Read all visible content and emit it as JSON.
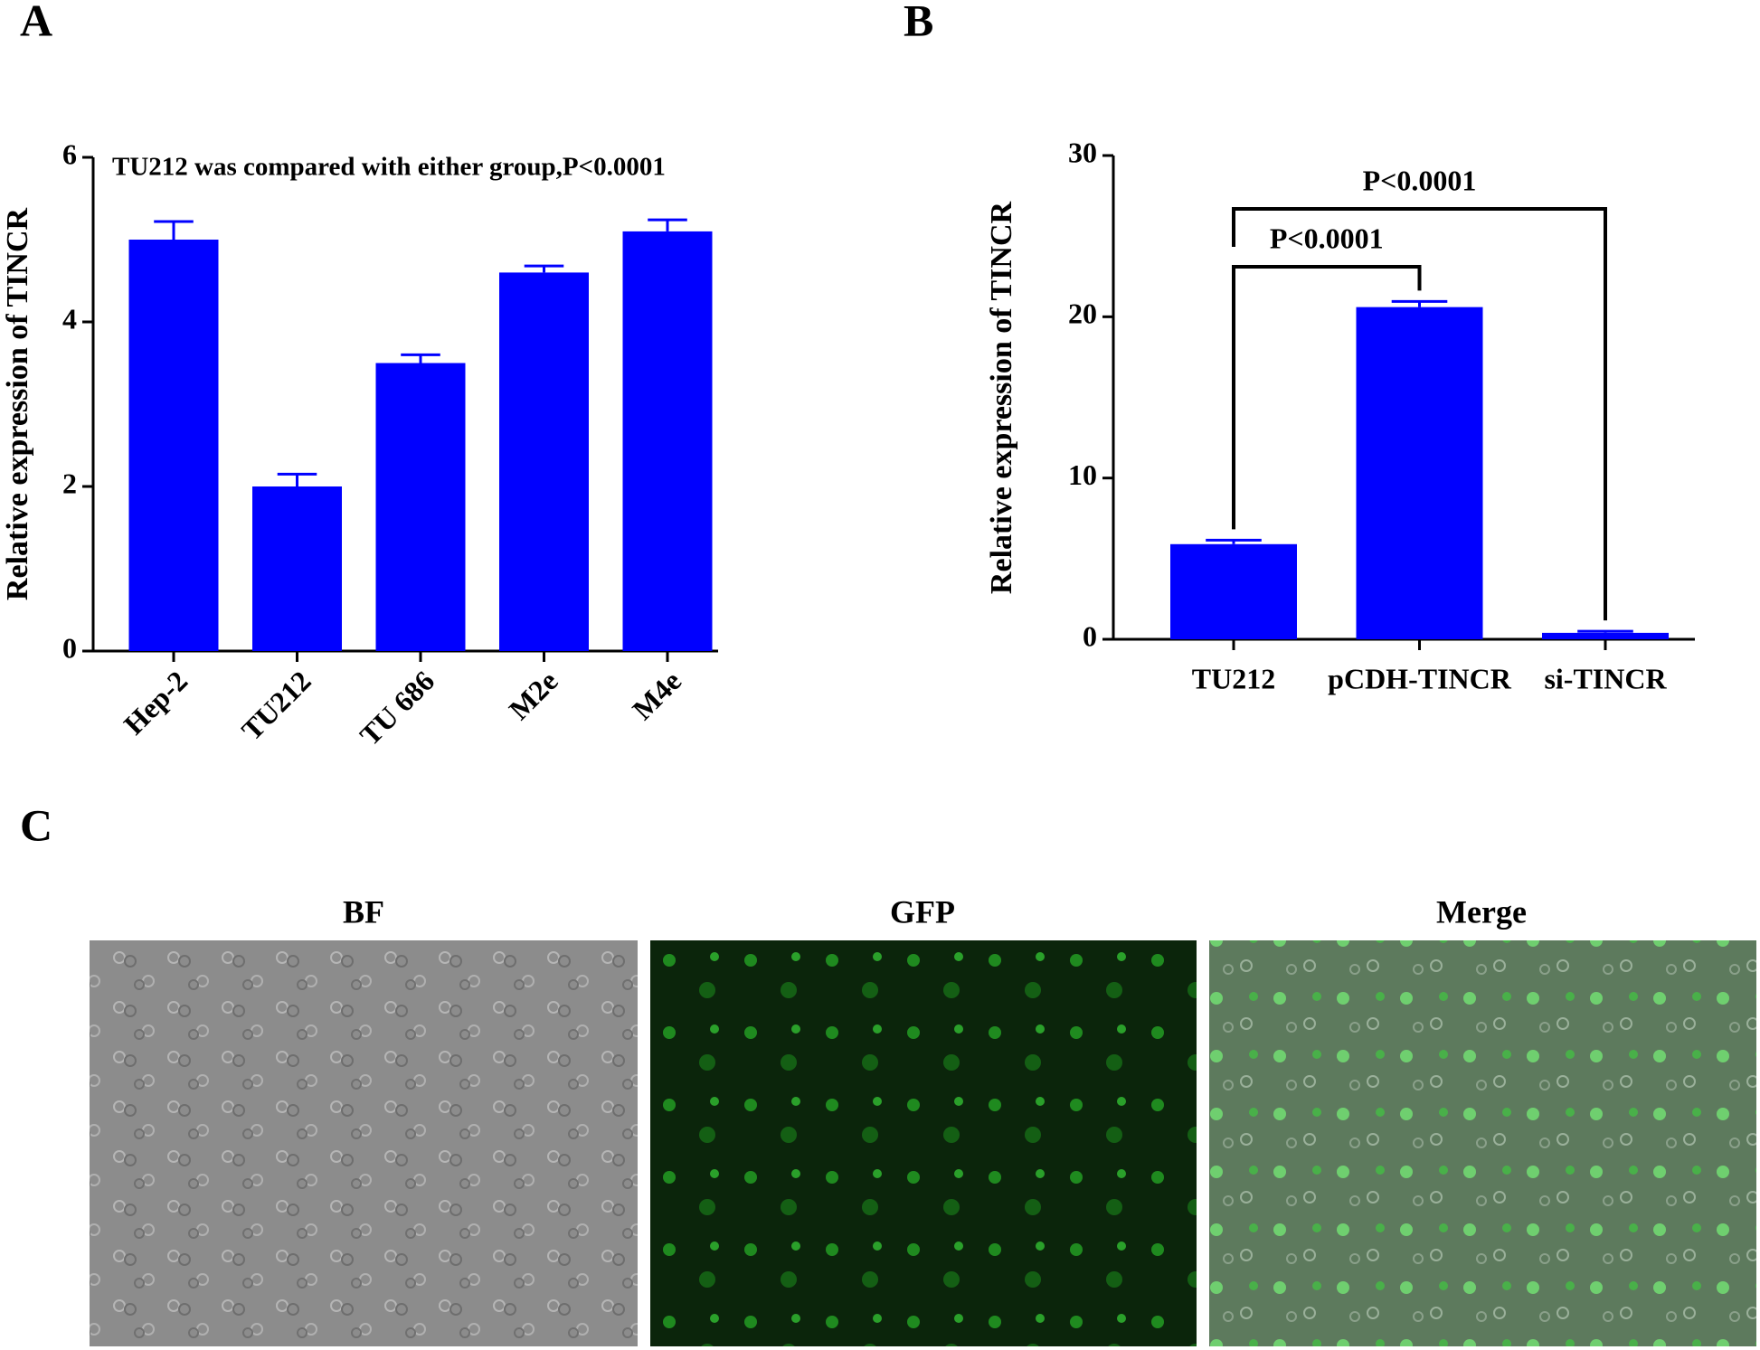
{
  "chart_data": [
    {
      "type": "bar",
      "panel": "A",
      "annotation": "TU212 was compared with either group,P<0.0001",
      "y_label": "Relative expression of TINCR",
      "categories": [
        "Hep-2",
        "TU212",
        "TU 686",
        "M2e",
        "M4e"
      ],
      "values": [
        5.0,
        2.0,
        3.5,
        4.6,
        5.1
      ],
      "errors": [
        0.22,
        0.15,
        0.1,
        0.08,
        0.14
      ],
      "color": "#0000ff",
      "ylim": [
        0,
        6
      ],
      "yticks": [
        0,
        2,
        4,
        6
      ]
    },
    {
      "type": "bar",
      "panel": "B",
      "y_label": "Relative expression of TINCR",
      "categories": [
        "TU212",
        "pCDH-TINCR",
        "si-TINCR"
      ],
      "values": [
        5.9,
        20.6,
        0.4
      ],
      "errors": [
        0.25,
        0.35,
        0.1
      ],
      "color": "#0000ff",
      "ylim": [
        0,
        30
      ],
      "yticks": [
        0,
        10,
        20,
        30
      ],
      "comparisons": [
        {
          "groups": [
            "TU212",
            "pCDH-TINCR"
          ],
          "label": "P<0.0001"
        },
        {
          "groups": [
            "TU212",
            "si-TINCR"
          ],
          "label": "P<0.0001"
        }
      ]
    }
  ],
  "images": {
    "panel": "C",
    "labels": [
      "BF",
      "GFP",
      "Merge"
    ]
  }
}
